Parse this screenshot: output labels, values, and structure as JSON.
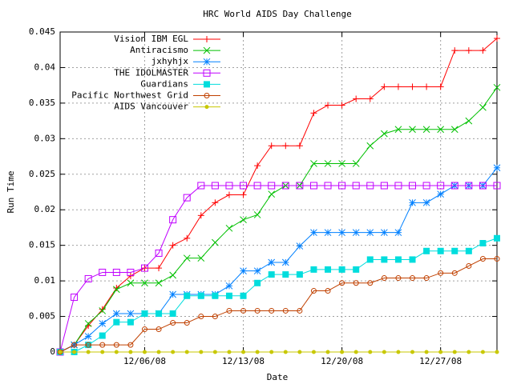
{
  "chart_data": {
    "type": "line",
    "title": "HRC World AIDS Day Challenge",
    "xlabel": "Date",
    "ylabel": "Run Time",
    "x": [
      "11/30/08",
      "12/01/08",
      "12/02/08",
      "12/03/08",
      "12/04/08",
      "12/05/08",
      "12/06/08",
      "12/07/08",
      "12/08/08",
      "12/09/08",
      "12/10/08",
      "12/11/08",
      "12/12/08",
      "12/13/08",
      "12/14/08",
      "12/15/08",
      "12/16/08",
      "12/17/08",
      "12/18/08",
      "12/19/08",
      "12/20/08",
      "12/21/08",
      "12/22/08",
      "12/23/08",
      "12/24/08",
      "12/25/08",
      "12/26/08",
      "12/27/08",
      "12/28/08",
      "12/29/08",
      "12/30/08",
      "12/31/08"
    ],
    "xlim": [
      "11/30/08",
      "12/31/08"
    ],
    "xticks": [
      "12/06/08",
      "12/13/08",
      "12/20/08",
      "12/27/08"
    ],
    "ylim": [
      0,
      0.045
    ],
    "yticks": [
      0,
      0.005,
      0.01,
      0.015,
      0.02,
      0.025,
      0.03,
      0.035,
      0.04,
      0.045
    ],
    "grid": true,
    "legend": "top-left",
    "series": [
      {
        "name": "Vision IBM EGL",
        "color": "#ff0000",
        "marker": "plus",
        "values": [
          0,
          0.001,
          0.0037,
          0.006,
          0.009,
          0.0107,
          0.0118,
          0.0118,
          0.015,
          0.016,
          0.0192,
          0.021,
          0.0221,
          0.0221,
          0.0262,
          0.029,
          0.029,
          0.029,
          0.0336,
          0.0347,
          0.0347,
          0.0356,
          0.0356,
          0.0373,
          0.0373,
          0.0373,
          0.0373,
          0.0373,
          0.0424,
          0.0424,
          0.0424,
          0.0441
        ]
      },
      {
        "name": "Antiracismo",
        "color": "#00c000",
        "marker": "cross",
        "values": [
          0,
          0.001,
          0.004,
          0.0058,
          0.0088,
          0.0097,
          0.0097,
          0.0097,
          0.0108,
          0.0132,
          0.0132,
          0.0154,
          0.0174,
          0.0186,
          0.0193,
          0.0222,
          0.0234,
          0.0234,
          0.0265,
          0.0265,
          0.0265,
          0.0265,
          0.029,
          0.0307,
          0.0313,
          0.0313,
          0.0313,
          0.0313,
          0.0313,
          0.0325,
          0.0344,
          0.0372
        ]
      },
      {
        "name": "jxhyhjx",
        "color": "#0080ff",
        "marker": "star",
        "values": [
          0,
          0.001,
          0.0022,
          0.004,
          0.0054,
          0.0054,
          0.0054,
          0.0054,
          0.0081,
          0.0081,
          0.0081,
          0.0081,
          0.0093,
          0.0114,
          0.0114,
          0.0126,
          0.0126,
          0.0149,
          0.0168,
          0.0168,
          0.0168,
          0.0168,
          0.0168,
          0.0168,
          0.0168,
          0.021,
          0.021,
          0.0222,
          0.0234,
          0.0234,
          0.0234,
          0.0259
        ]
      },
      {
        "name": "THE IDOLMASTER",
        "color": "#c000ff",
        "marker": "square",
        "values": [
          0,
          0.0077,
          0.0103,
          0.0112,
          0.0112,
          0.0112,
          0.0118,
          0.0139,
          0.0186,
          0.0217,
          0.0234,
          0.0234,
          0.0234,
          0.0234,
          0.0234,
          0.0234,
          0.0234,
          0.0234,
          0.0234,
          0.0234,
          0.0234,
          0.0234,
          0.0234,
          0.0234,
          0.0234,
          0.0234,
          0.0234,
          0.0234,
          0.0234,
          0.0234,
          0.0234,
          0.0234
        ]
      },
      {
        "name": "Guardians",
        "color": "#00dddd",
        "marker": "filled-square",
        "values": [
          0,
          0,
          0.001,
          0.0023,
          0.0042,
          0.0042,
          0.0054,
          0.0054,
          0.0054,
          0.0079,
          0.0079,
          0.0079,
          0.0079,
          0.0079,
          0.0097,
          0.0109,
          0.0109,
          0.0109,
          0.0116,
          0.0116,
          0.0116,
          0.0116,
          0.013,
          0.013,
          0.013,
          0.013,
          0.0142,
          0.0142,
          0.0142,
          0.0142,
          0.0153,
          0.016
        ]
      },
      {
        "name": "Pacific Northwest Grid",
        "color": "#c04000",
        "marker": "circle",
        "values": [
          0,
          0.001,
          0.001,
          0.001,
          0.001,
          0.001,
          0.0032,
          0.0032,
          0.0041,
          0.0041,
          0.005,
          0.005,
          0.0058,
          0.0058,
          0.0058,
          0.0058,
          0.0058,
          0.0058,
          0.0086,
          0.0086,
          0.0097,
          0.0097,
          0.0097,
          0.0104,
          0.0104,
          0.0104,
          0.0104,
          0.0111,
          0.0111,
          0.0121,
          0.0131,
          0.0131
        ]
      },
      {
        "name": "AIDS Vancouver",
        "color": "#c8c800",
        "marker": "filled-circle",
        "values": [
          0,
          0,
          0,
          0,
          0,
          0,
          0,
          0,
          0,
          0,
          0,
          0,
          0,
          0,
          0,
          0,
          0,
          0,
          0,
          0,
          0,
          0,
          0,
          0,
          0,
          0,
          0,
          0,
          0,
          0,
          0,
          0
        ]
      }
    ]
  }
}
